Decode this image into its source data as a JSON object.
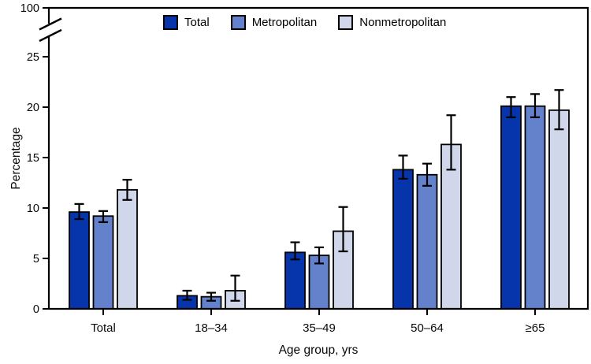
{
  "chart_data": {
    "type": "bar",
    "title": "",
    "xlabel": "Age group, yrs",
    "ylabel": "Percentage",
    "categories": [
      "Total",
      "18–34",
      "35–49",
      "50–64",
      "≥65"
    ],
    "y_ticks": [
      0,
      5,
      10,
      15,
      20,
      25
    ],
    "y_axis_break": true,
    "y_axis_top_label": "100",
    "ylim": [
      0,
      27
    ],
    "grid": false,
    "legend_position": "top-center-inside",
    "error_bars": true,
    "axis_color": "#000000",
    "series": [
      {
        "name": "Total",
        "color": "#0635ab",
        "values": [
          9.6,
          1.3,
          5.6,
          13.8,
          20.1
        ],
        "ci_low": [
          8.9,
          0.9,
          4.9,
          12.9,
          19.0
        ],
        "ci_high": [
          10.4,
          1.8,
          6.6,
          15.2,
          21.0
        ]
      },
      {
        "name": "Metropolitan",
        "color": "#6382cb",
        "values": [
          9.2,
          1.2,
          5.3,
          13.3,
          20.1
        ],
        "ci_low": [
          8.6,
          0.8,
          4.5,
          12.2,
          19.0
        ],
        "ci_high": [
          9.7,
          1.6,
          6.1,
          14.4,
          21.3
        ]
      },
      {
        "name": "Nonmetropolitan",
        "color": "#d1d7ea",
        "values": [
          11.8,
          1.8,
          7.7,
          16.3,
          19.7
        ],
        "ci_low": [
          10.8,
          0.8,
          5.7,
          13.8,
          17.8
        ],
        "ci_high": [
          12.8,
          3.3,
          10.1,
          19.2,
          21.7
        ]
      }
    ]
  }
}
